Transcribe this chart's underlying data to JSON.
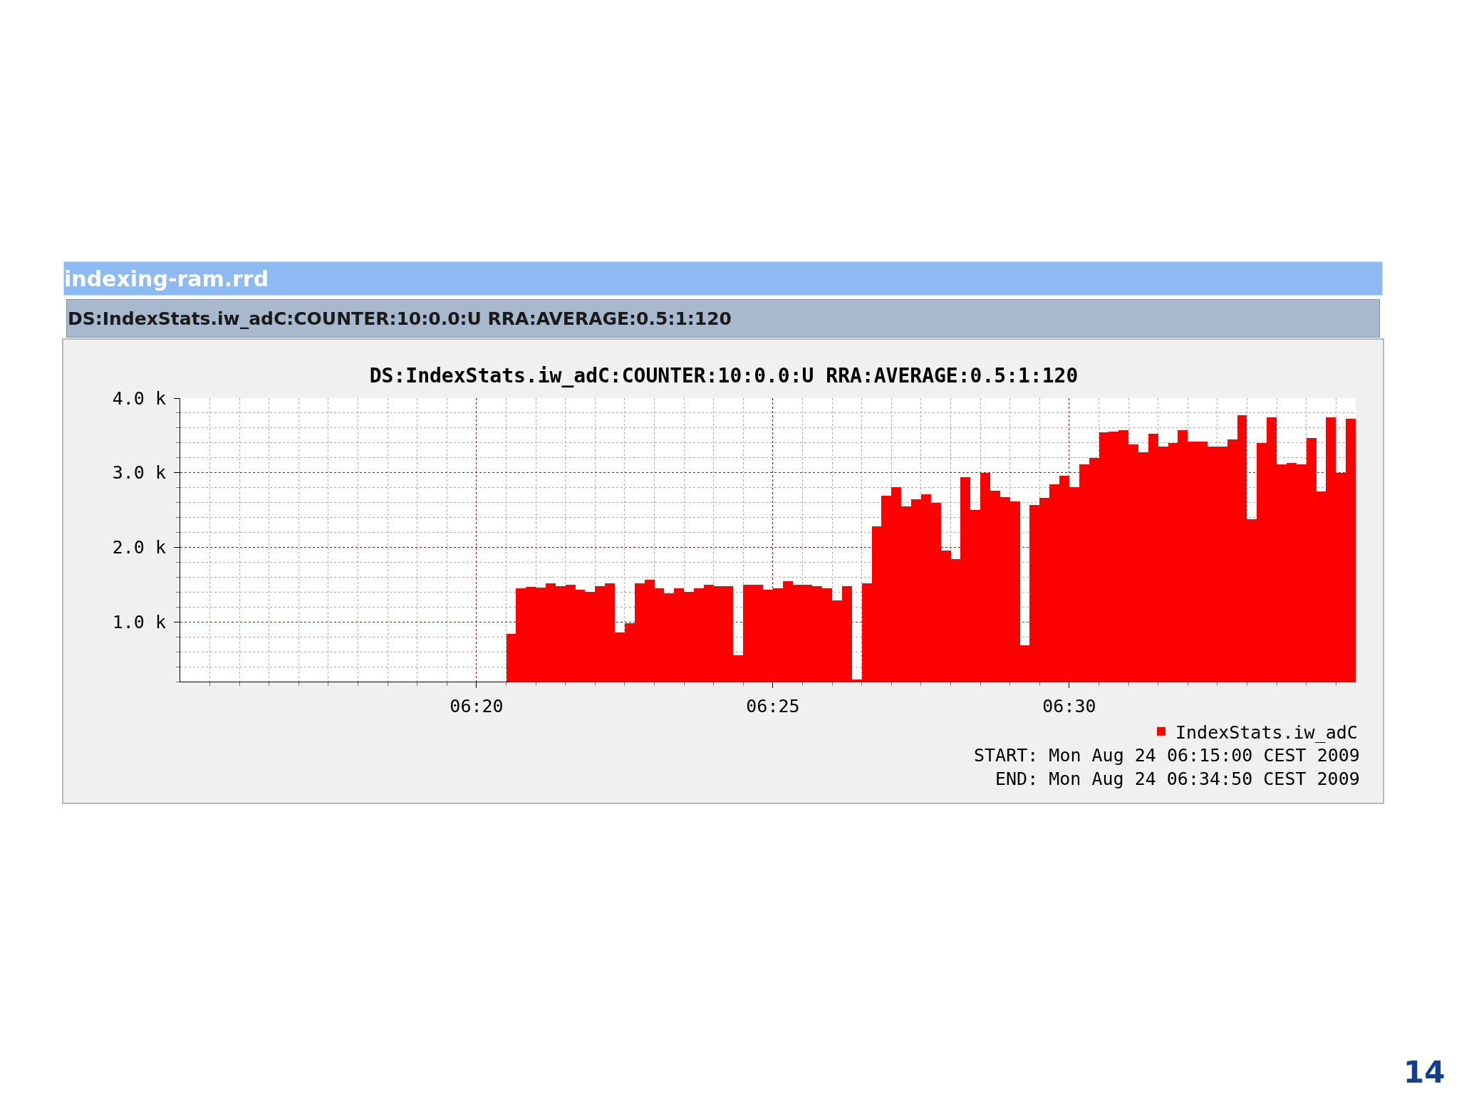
{
  "chart_data": {
    "type": "bar",
    "title": "DS:IndexStats.iw_adC:COUNTER:10:0.0:U RRA:AVERAGE:0.5:1:120",
    "annotations": [
      "indexing-ram.rrd",
      "DS:IndexStats.iw_adC:COUNTER:10:0.0:U RRA:AVERAGE:0.5:1:120",
      "START: Mon Aug 24 06:15:00 CEST 2009",
      "END: Mon Aug 24 06:34:50 CEST 2009",
      "14"
    ],
    "x": [
      "2009-08-24T06:20:35",
      "2009-08-24T06:20:45",
      "2009-08-24T06:20:55",
      "2009-08-24T06:21:05",
      "2009-08-24T06:21:15",
      "2009-08-24T06:21:25",
      "2009-08-24T06:21:35",
      "2009-08-24T06:21:45",
      "2009-08-24T06:21:55",
      "2009-08-24T06:22:05",
      "2009-08-24T06:22:15",
      "2009-08-24T06:22:25",
      "2009-08-24T06:22:35",
      "2009-08-24T06:22:45",
      "2009-08-24T06:22:55",
      "2009-08-24T06:23:05",
      "2009-08-24T06:23:15",
      "2009-08-24T06:23:25",
      "2009-08-24T06:23:35",
      "2009-08-24T06:23:45",
      "2009-08-24T06:23:55",
      "2009-08-24T06:24:05",
      "2009-08-24T06:24:15",
      "2009-08-24T06:24:25",
      "2009-08-24T06:24:35",
      "2009-08-24T06:24:45",
      "2009-08-24T06:24:55",
      "2009-08-24T06:25:05",
      "2009-08-24T06:25:15",
      "2009-08-24T06:25:25",
      "2009-08-24T06:25:35",
      "2009-08-24T06:25:45",
      "2009-08-24T06:25:55",
      "2009-08-24T06:26:05",
      "2009-08-24T06:26:15",
      "2009-08-24T06:26:25",
      "2009-08-24T06:26:35",
      "2009-08-24T06:26:45",
      "2009-08-24T06:26:55",
      "2009-08-24T06:27:05",
      "2009-08-24T06:27:15",
      "2009-08-24T06:27:25",
      "2009-08-24T06:27:35",
      "2009-08-24T06:27:45",
      "2009-08-24T06:27:55",
      "2009-08-24T06:28:05",
      "2009-08-24T06:28:15",
      "2009-08-24T06:28:25",
      "2009-08-24T06:28:35",
      "2009-08-24T06:28:45",
      "2009-08-24T06:28:55",
      "2009-08-24T06:29:05",
      "2009-08-24T06:29:15",
      "2009-08-24T06:29:25",
      "2009-08-24T06:29:35",
      "2009-08-24T06:29:45",
      "2009-08-24T06:29:55",
      "2009-08-24T06:30:05",
      "2009-08-24T06:30:15",
      "2009-08-24T06:30:25",
      "2009-08-24T06:30:35",
      "2009-08-24T06:30:45",
      "2009-08-24T06:30:55",
      "2009-08-24T06:31:05",
      "2009-08-24T06:31:15",
      "2009-08-24T06:31:25",
      "2009-08-24T06:31:35",
      "2009-08-24T06:31:45",
      "2009-08-24T06:31:55",
      "2009-08-24T06:32:05",
      "2009-08-24T06:32:15",
      "2009-08-24T06:32:25",
      "2009-08-24T06:32:35",
      "2009-08-24T06:32:45",
      "2009-08-24T06:32:55",
      "2009-08-24T06:33:05",
      "2009-08-24T06:33:15",
      "2009-08-24T06:33:25",
      "2009-08-24T06:33:35",
      "2009-08-24T06:33:45",
      "2009-08-24T06:33:55",
      "2009-08-24T06:34:05",
      "2009-08-24T06:34:15",
      "2009-08-24T06:34:25",
      "2009-08-24T06:34:35",
      "2009-08-24T06:34:45"
    ],
    "series": [
      {
        "name": "IndexStats.iw_adC",
        "color": "#ff0000",
        "values": [
          840,
          1450,
          1470,
          1460,
          1520,
          1480,
          1500,
          1430,
          1400,
          1480,
          1520,
          860,
          980,
          1520,
          1570,
          1450,
          1380,
          1450,
          1400,
          1450,
          1500,
          1480,
          1480,
          550,
          1500,
          1500,
          1430,
          1450,
          1550,
          1500,
          1500,
          1480,
          1450,
          1290,
          1480,
          230,
          1520,
          2280,
          2690,
          2810,
          2550,
          2640,
          2710,
          2600,
          1960,
          1840,
          2940,
          2500,
          3000,
          2760,
          2670,
          2620,
          690,
          2570,
          2660,
          2840,
          2960,
          2810,
          3110,
          3200,
          3540,
          3550,
          3570,
          3380,
          3270,
          3520,
          3350,
          3400,
          3570,
          3420,
          3420,
          3350,
          3350,
          3450,
          3770,
          2380,
          3400,
          3740,
          3110,
          3130,
          3110,
          3470,
          2750,
          3740,
          3000,
          3720
        ]
      }
    ],
    "xlim": [
      "2009-08-24T06:15:00",
      "2009-08-24T06:34:50"
    ],
    "xticks": [
      {
        "value": "2009-08-24T06:15:30",
        "label": null
      },
      {
        "value": "2009-08-24T06:16:00",
        "label": null
      },
      {
        "value": "2009-08-24T06:16:30",
        "label": null
      },
      {
        "value": "2009-08-24T06:17:00",
        "label": null
      },
      {
        "value": "2009-08-24T06:17:30",
        "label": null
      },
      {
        "value": "2009-08-24T06:18:00",
        "label": null
      },
      {
        "value": "2009-08-24T06:18:30",
        "label": null
      },
      {
        "value": "2009-08-24T06:19:00",
        "label": null
      },
      {
        "value": "2009-08-24T06:19:30",
        "label": null
      },
      {
        "value": "2009-08-24T06:20",
        "label": "06:20"
      },
      {
        "value": "2009-08-24T06:20:30",
        "label": null
      },
      {
        "value": "2009-08-24T06:21:00",
        "label": null
      },
      {
        "value": "2009-08-24T06:21:30",
        "label": null
      },
      {
        "value": "2009-08-24T06:22:00",
        "label": null
      },
      {
        "value": "2009-08-24T06:22:30",
        "label": null
      },
      {
        "value": "2009-08-24T06:23:00",
        "label": null
      },
      {
        "value": "2009-08-24T06:23:30",
        "label": null
      },
      {
        "value": "2009-08-24T06:24:00",
        "label": null
      },
      {
        "value": "2009-08-24T06:24:30",
        "label": null
      },
      {
        "value": "2009-08-24T06:25",
        "label": "06:25"
      },
      {
        "value": "2009-08-24T06:25:30",
        "label": null
      },
      {
        "value": "2009-08-24T06:26:00",
        "label": null
      },
      {
        "value": "2009-08-24T06:26:30",
        "label": null
      },
      {
        "value": "2009-08-24T06:27:00",
        "label": null
      },
      {
        "value": "2009-08-24T06:27:30",
        "label": null
      },
      {
        "value": "2009-08-24T06:28:00",
        "label": null
      },
      {
        "value": "2009-08-24T06:28:30",
        "label": null
      },
      {
        "value": "2009-08-24T06:29:00",
        "label": null
      },
      {
        "value": "2009-08-24T06:29:30",
        "label": null
      },
      {
        "value": "2009-08-24T06:30",
        "label": "06:30"
      },
      {
        "value": "2009-08-24T06:30:30",
        "label": null
      },
      {
        "value": "2009-08-24T06:31:00",
        "label": null
      },
      {
        "value": "2009-08-24T06:31:30",
        "label": null
      },
      {
        "value": "2009-08-24T06:32:00",
        "label": null
      },
      {
        "value": "2009-08-24T06:32:30",
        "label": null
      },
      {
        "value": "2009-08-24T06:33:00",
        "label": null
      },
      {
        "value": "2009-08-24T06:33:30",
        "label": null
      },
      {
        "value": "2009-08-24T06:34:00",
        "label": null
      },
      {
        "value": "2009-08-24T06:34:30",
        "label": null
      }
    ],
    "ylim": [
      200,
      4000
    ],
    "yticks": [
      {
        "value": 200,
        "label": null
      },
      {
        "value": 400,
        "label": null
      },
      {
        "value": 600,
        "label": null
      },
      {
        "value": 800,
        "label": null
      },
      {
        "value": 1000,
        "label": "1.0 k"
      },
      {
        "value": 1200,
        "label": null
      },
      {
        "value": 1400,
        "label": null
      },
      {
        "value": 1600,
        "label": null
      },
      {
        "value": 1800,
        "label": null
      },
      {
        "value": 2000,
        "label": "2.0 k"
      },
      {
        "value": 2200,
        "label": null
      },
      {
        "value": 2400,
        "label": null
      },
      {
        "value": 2600,
        "label": null
      },
      {
        "value": 2800,
        "label": null
      },
      {
        "value": 3000,
        "label": "3.0 k"
      },
      {
        "value": 3200,
        "label": null
      },
      {
        "value": 3400,
        "label": null
      },
      {
        "value": 3600,
        "label": null
      },
      {
        "value": 3800,
        "label": null
      },
      {
        "value": 4000,
        "label": "4.0 k"
      }
    ],
    "grid": true,
    "legend": "bottom right"
  }
}
